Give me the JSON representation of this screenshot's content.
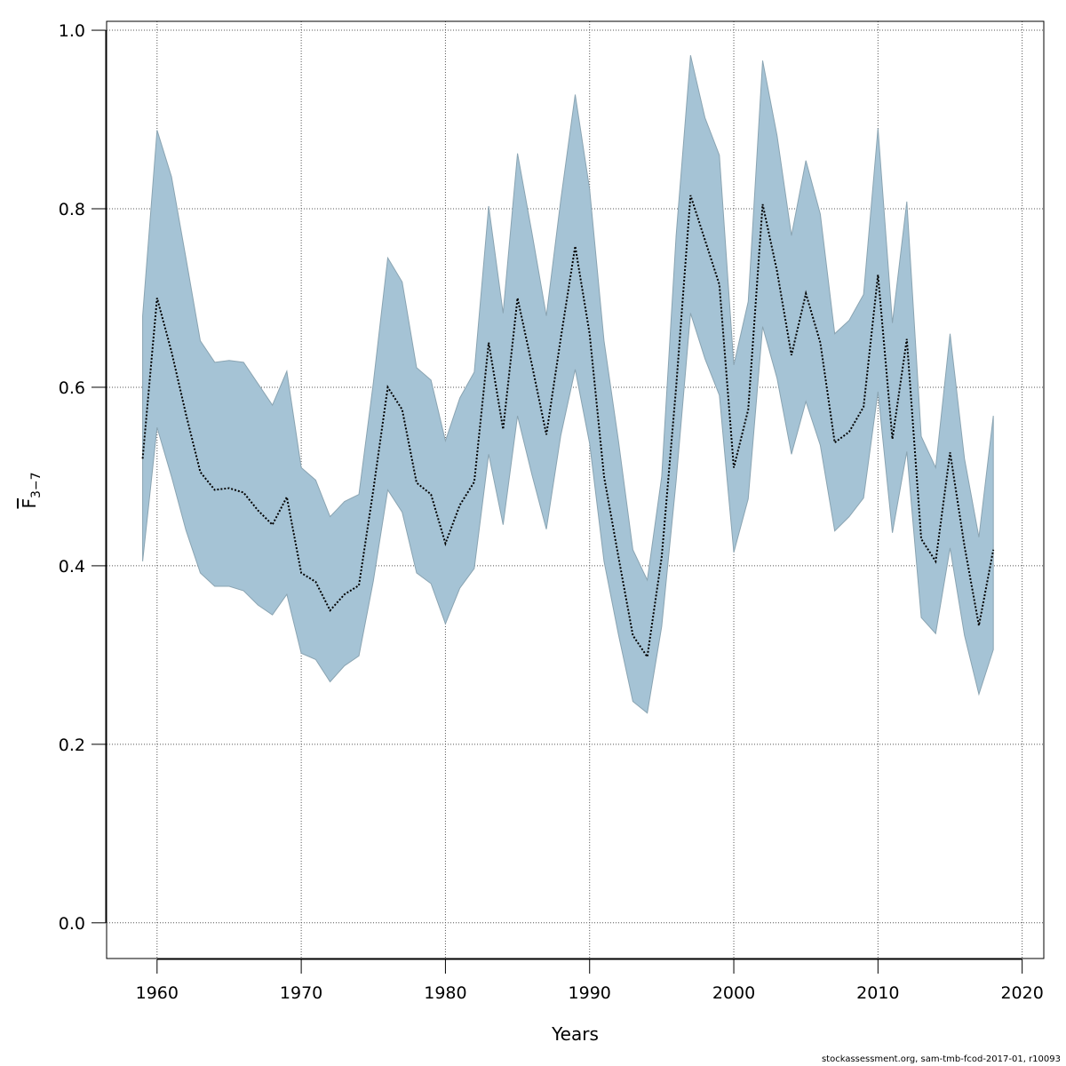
{
  "chart_data": {
    "type": "area",
    "xlabel": "Years",
    "ylabel": "F",
    "ylabel_subscript": "3−7",
    "xlim": [
      1956.5,
      2021.5
    ],
    "ylim": [
      -0.04,
      1.01
    ],
    "xticks": [
      1960,
      1970,
      1980,
      1990,
      2000,
      2010,
      2020
    ],
    "yticks": [
      0.0,
      0.2,
      0.4,
      0.6,
      0.8,
      1.0
    ],
    "xtick_labels": [
      "1960",
      "1970",
      "1980",
      "1990",
      "2000",
      "2010",
      "2020"
    ],
    "ytick_labels": [
      "0.0",
      "0.2",
      "0.4",
      "0.6",
      "0.8",
      "1.0"
    ],
    "grid": true,
    "colors": {
      "band": "#a5c3d5",
      "band_edge": "#8aa4b2",
      "line": "#000000"
    },
    "x": [
      1959,
      1960,
      1961,
      1962,
      1963,
      1964,
      1965,
      1966,
      1967,
      1968,
      1969,
      1970,
      1971,
      1972,
      1973,
      1974,
      1975,
      1976,
      1977,
      1978,
      1979,
      1980,
      1981,
      1982,
      1983,
      1984,
      1985,
      1986,
      1987,
      1988,
      1989,
      1990,
      1991,
      1992,
      1993,
      1994,
      1995,
      1996,
      1997,
      1998,
      1999,
      2000,
      2001,
      2002,
      2003,
      2004,
      2005,
      2006,
      2007,
      2008,
      2009,
      2010,
      2011,
      2012,
      2013,
      2014,
      2015,
      2016,
      2017,
      2018
    ],
    "series": [
      {
        "values": [
          0.52,
          0.7,
          0.64,
          0.57,
          0.505,
          0.485,
          0.487,
          0.482,
          0.462,
          0.446,
          0.477,
          0.392,
          0.382,
          0.35,
          0.368,
          0.378,
          0.485,
          0.6,
          0.575,
          0.493,
          0.48,
          0.425,
          0.468,
          0.494,
          0.65,
          0.553,
          0.7,
          0.625,
          0.547,
          0.655,
          0.758,
          0.66,
          0.5,
          0.41,
          0.322,
          0.298,
          0.41,
          0.6,
          0.815,
          0.765,
          0.715,
          0.51,
          0.575,
          0.805,
          0.73,
          0.636,
          0.705,
          0.65,
          0.538,
          0.55,
          0.578,
          0.726,
          0.542,
          0.654,
          0.43,
          0.405,
          0.527,
          0.422,
          0.333,
          0.418
        ]
      }
    ],
    "upper": [
      0.68,
      0.888,
      0.836,
      0.745,
      0.652,
      0.628,
      0.63,
      0.628,
      0.604,
      0.58,
      0.618,
      0.51,
      0.496,
      0.455,
      0.472,
      0.48,
      0.605,
      0.745,
      0.718,
      0.622,
      0.608,
      0.54,
      0.588,
      0.617,
      0.803,
      0.683,
      0.862,
      0.773,
      0.68,
      0.81,
      0.928,
      0.822,
      0.652,
      0.54,
      0.418,
      0.384,
      0.5,
      0.77,
      0.972,
      0.902,
      0.86,
      0.625,
      0.696,
      0.966,
      0.882,
      0.77,
      0.854,
      0.794,
      0.66,
      0.675,
      0.704,
      0.89,
      0.672,
      0.808,
      0.545,
      0.51,
      0.66,
      0.52,
      0.432,
      0.568
    ],
    "lower": [
      0.405,
      0.555,
      0.5,
      0.44,
      0.392,
      0.377,
      0.377,
      0.372,
      0.356,
      0.345,
      0.368,
      0.302,
      0.295,
      0.27,
      0.288,
      0.299,
      0.383,
      0.485,
      0.46,
      0.392,
      0.38,
      0.335,
      0.375,
      0.397,
      0.525,
      0.446,
      0.568,
      0.502,
      0.441,
      0.546,
      0.62,
      0.537,
      0.405,
      0.323,
      0.248,
      0.235,
      0.332,
      0.495,
      0.683,
      0.632,
      0.591,
      0.415,
      0.475,
      0.668,
      0.61,
      0.525,
      0.584,
      0.535,
      0.439,
      0.455,
      0.476,
      0.595,
      0.437,
      0.528,
      0.342,
      0.324,
      0.42,
      0.322,
      0.256,
      0.306
    ]
  },
  "footer_text": "stockassessment.org, sam-tmb-fcod-2017-01, r10093"
}
